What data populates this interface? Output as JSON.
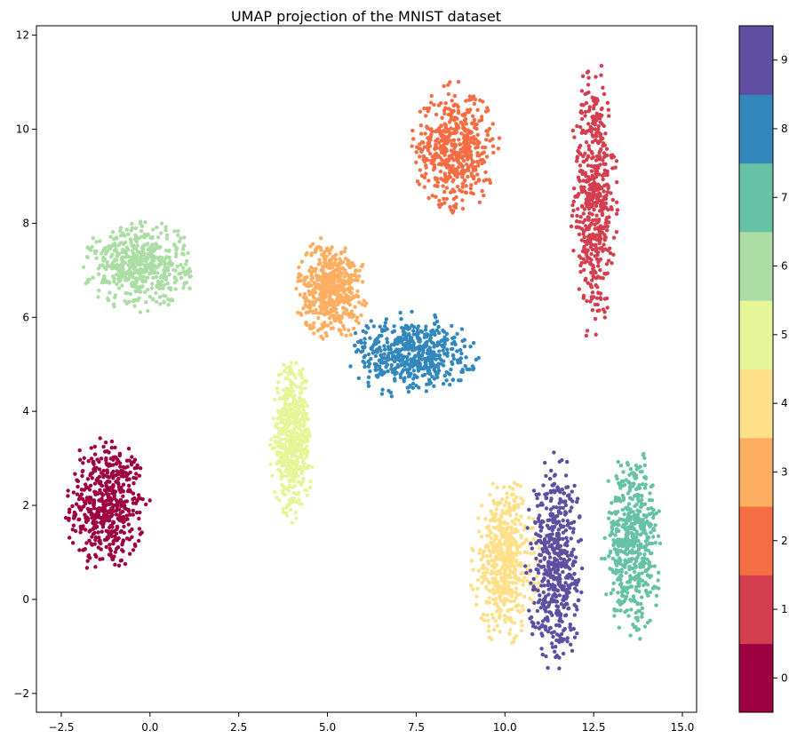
{
  "chart_data": {
    "type": "scatter",
    "title": "UMAP projection of the MNIST dataset",
    "xlabel": "",
    "ylabel": "",
    "xlim": [
      -3.2,
      15.4
    ],
    "ylim": [
      -2.4,
      12.2
    ],
    "xticks": [
      -2.5,
      0.0,
      2.5,
      5.0,
      7.5,
      10.0,
      12.5,
      15.0
    ],
    "xtick_labels": [
      "−2.5",
      "0.0",
      "2.5",
      "5.0",
      "7.5",
      "10.0",
      "12.5",
      "15.0"
    ],
    "yticks": [
      -2,
      0,
      2,
      4,
      6,
      8,
      10,
      12
    ],
    "ytick_labels": [
      "−2",
      "0",
      "2",
      "4",
      "6",
      "8",
      "10",
      "12"
    ],
    "grid": false,
    "colormap": "Spectral",
    "colorbar": {
      "labels": [
        "0",
        "1",
        "2",
        "3",
        "4",
        "5",
        "6",
        "7",
        "8",
        "9"
      ],
      "colors": [
        "#9e0142",
        "#d53e4f",
        "#f46d43",
        "#fdae61",
        "#fee08b",
        "#e6f598",
        "#abdda4",
        "#66c2a5",
        "#3288bd",
        "#5e4fa2"
      ],
      "range": [
        -0.5,
        9.5
      ]
    },
    "clusters": [
      {
        "digit": 0,
        "center": [
          -1.2,
          2.0
        ],
        "extent": [
          1.15,
          1.5
        ]
      },
      {
        "digit": 1,
        "center": [
          12.5,
          8.5
        ],
        "extent": [
          0.65,
          2.9
        ]
      },
      {
        "digit": 2,
        "center": [
          8.6,
          9.6
        ],
        "extent": [
          1.2,
          1.35
        ]
      },
      {
        "digit": 3,
        "center": [
          5.1,
          6.6
        ],
        "extent": [
          1.0,
          1.1
        ]
      },
      {
        "digit": 4,
        "center": [
          10.0,
          0.8
        ],
        "extent": [
          0.95,
          1.75
        ]
      },
      {
        "digit": 5,
        "center": [
          4.0,
          3.4
        ],
        "extent": [
          0.6,
          1.7
        ]
      },
      {
        "digit": 6,
        "center": [
          -0.3,
          7.1
        ],
        "extent": [
          1.55,
          0.95
        ]
      },
      {
        "digit": 7,
        "center": [
          13.6,
          1.2
        ],
        "extent": [
          0.85,
          2.0
        ]
      },
      {
        "digit": 8,
        "center": [
          7.4,
          5.2
        ],
        "extent": [
          1.8,
          0.9
        ]
      },
      {
        "digit": 9,
        "center": [
          11.4,
          0.8
        ],
        "extent": [
          0.8,
          2.3
        ]
      }
    ]
  }
}
